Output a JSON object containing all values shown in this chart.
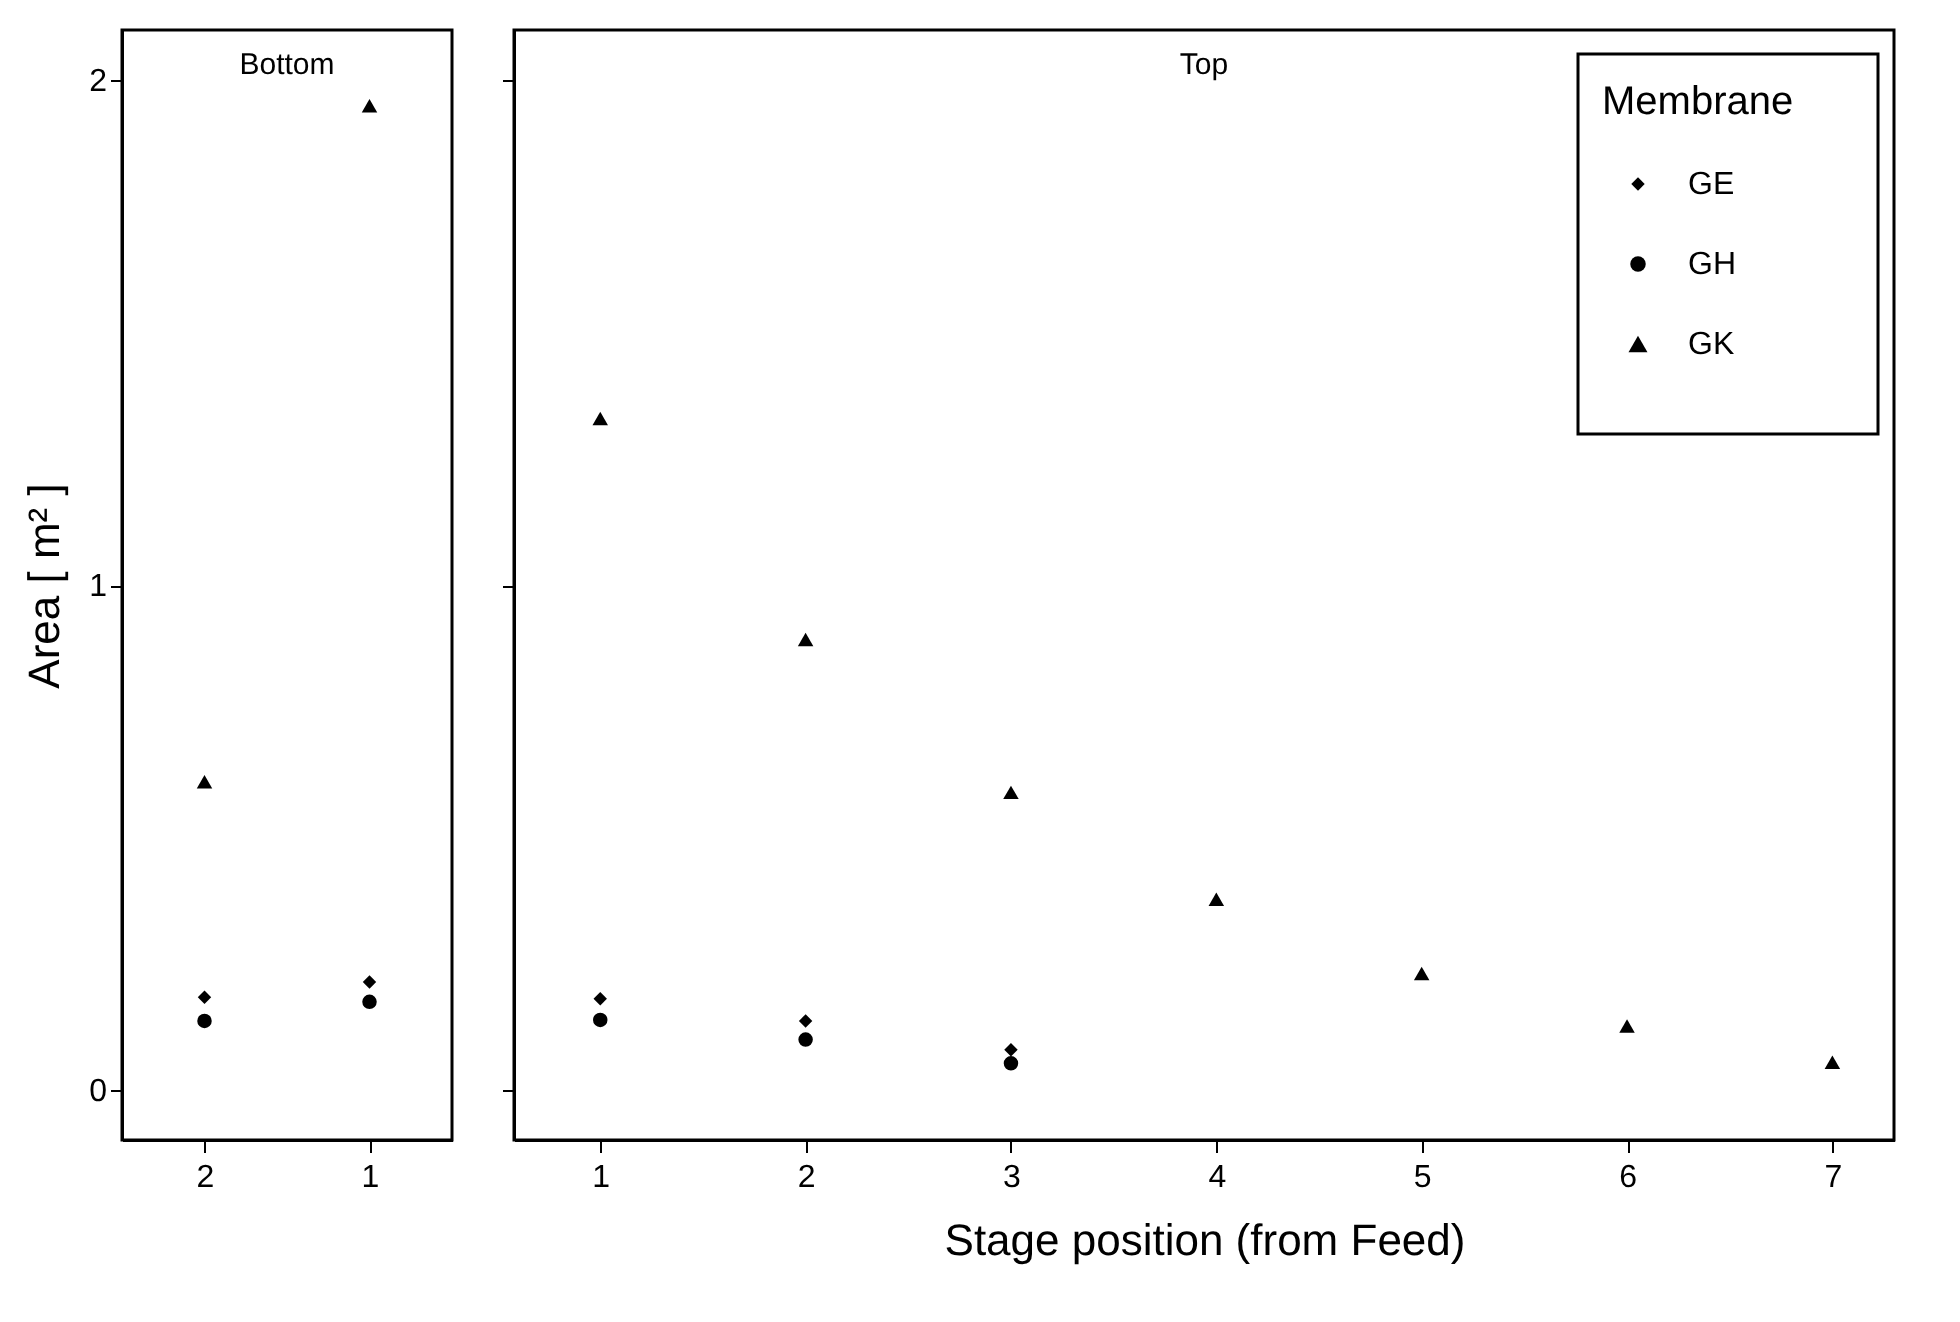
{
  "chart_data": [
    {
      "type": "scatter",
      "title": "Bottom",
      "ylabel": "Area [ m² ]",
      "categories": [
        "2",
        "1"
      ],
      "ylim": [
        -0.1,
        2.1
      ],
      "yticks": [
        0,
        1,
        2
      ],
      "grid": false,
      "series": [
        {
          "color": "#000000",
          "marker": "diamond",
          "values": [
            0.183,
            0.213
          ]
        },
        {
          "color": "#000000",
          "marker": "circle",
          "values": [
            0.136,
            0.174
          ]
        },
        {
          "color": "#000000",
          "marker": "triangle",
          "values": [
            0.61,
            1.95
          ]
        }
      ]
    },
    {
      "type": "scatter",
      "title": "Top",
      "xlabel": "Stage position  (from Feed)",
      "legend_title": "Membrane",
      "legend": "top right",
      "grid": false,
      "tick_labels": "x",
      "xlim": [
        0.58,
        7.3
      ],
      "xticks": [
        1,
        2,
        3,
        4,
        5,
        6,
        7
      ],
      "ylim": [
        -0.1,
        2.1
      ],
      "yticks": [
        0,
        1,
        2
      ],
      "series": [
        {
          "name": "GE",
          "color": "#000000",
          "marker": "diamond",
          "x": [
            1,
            2,
            3
          ],
          "values": [
            0.18,
            0.136,
            0.079
          ]
        },
        {
          "name": "GH",
          "color": "#000000",
          "marker": "circle",
          "x": [
            1,
            2,
            3
          ],
          "values": [
            0.138,
            0.099,
            0.052
          ]
        },
        {
          "name": "GK",
          "color": "#000000",
          "marker": "triangle",
          "x": [
            1,
            2,
            3,
            4,
            5,
            6,
            7
          ],
          "values": [
            1.33,
            0.892,
            0.589,
            0.377,
            0.23,
            0.126,
            0.054
          ]
        }
      ]
    }
  ]
}
